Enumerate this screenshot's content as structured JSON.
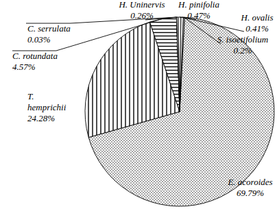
{
  "chart_data": {
    "type": "pie",
    "categories": [
      "E. acoroides",
      "T. hemprichii",
      "C. rotundata",
      "C. serrulata",
      "H. Uninervis",
      "H. pinifolia",
      "H. ovalis",
      "S. isoetifolium"
    ],
    "values": [
      69.79,
      24.28,
      4.57,
      0.03,
      0.26,
      0.47,
      0.41,
      0.2
    ],
    "value_labels": [
      "69.79%",
      "24.28%",
      "4.57%",
      "0.03%",
      "0.26%",
      "0.47%",
      "0.41%",
      "0.2%"
    ],
    "data_labels": true
  }
}
